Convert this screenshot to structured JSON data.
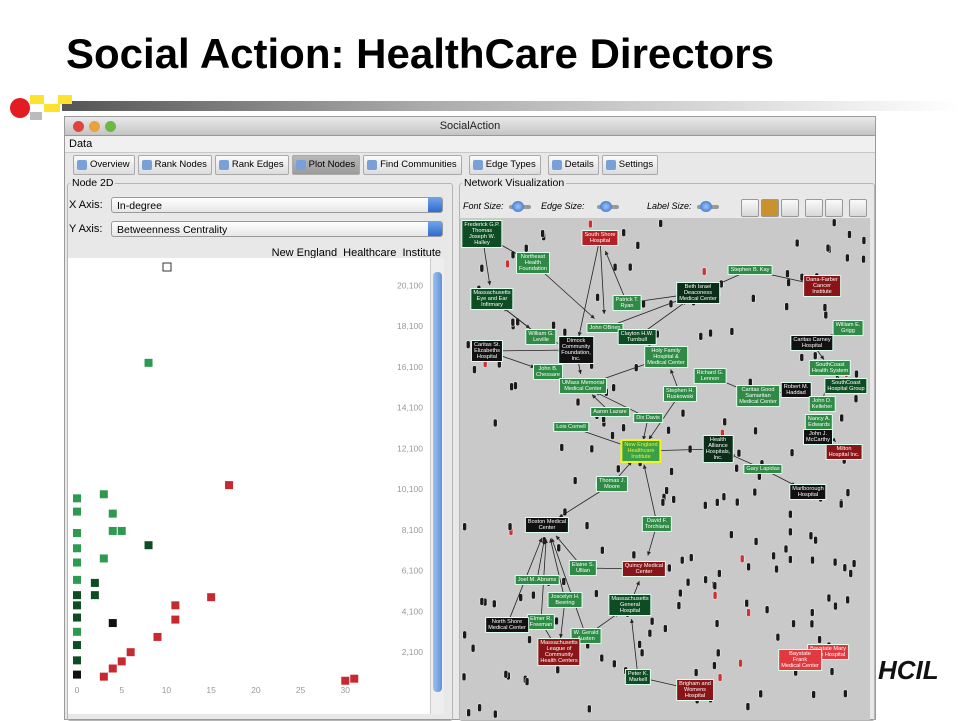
{
  "slide_title": "Social Action: HealthCare Directors",
  "window": {
    "title": "SocialAction",
    "menu": [
      "Data"
    ],
    "toolbar": [
      "Overview",
      "Rank Nodes",
      "Rank Edges",
      "Plot Nodes",
      "Find Communities",
      "Edge Types",
      "Details",
      "Settings"
    ]
  },
  "left_panel": {
    "title": "Node 2D",
    "x_axis_label": "X Axis:",
    "x_axis_value": "In-degree",
    "y_axis_label": "Y Axis:",
    "y_axis_value": "Betweenness Centrality",
    "selected_node": "New England  Healthcare  Institute",
    "plot": {
      "type": "scatter",
      "xlim": [
        0,
        35
      ],
      "ylim": [
        0,
        21100
      ],
      "xticks": [
        0,
        5,
        10,
        15,
        20,
        25,
        30
      ],
      "yticks": [
        {
          "value": 2100,
          "label": "2,100"
        },
        {
          "value": 4100,
          "label": "4,100"
        },
        {
          "value": 6100,
          "label": "6,100"
        },
        {
          "value": 8100,
          "label": "8,100"
        },
        {
          "value": 10100,
          "label": "10,100"
        },
        {
          "value": 12100,
          "label": "12,100"
        },
        {
          "value": 14100,
          "label": "14,100"
        },
        {
          "value": 16100,
          "label": "16,100"
        },
        {
          "value": 18100,
          "label": "18,100"
        },
        {
          "value": 20100,
          "label": "20,100"
        }
      ],
      "points": [
        {
          "x": 8,
          "y": 16300,
          "color": "#2e9a4f"
        },
        {
          "x": 17,
          "y": 10300,
          "color": "#c62a30"
        },
        {
          "x": 3,
          "y": 9850,
          "color": "#2e9a4f"
        },
        {
          "x": 4,
          "y": 8900,
          "color": "#2e9a4f"
        },
        {
          "x": 4,
          "y": 8050,
          "color": "#2e9a4f"
        },
        {
          "x": 5,
          "y": 8050,
          "color": "#2e9a4f"
        },
        {
          "x": 3,
          "y": 6700,
          "color": "#2e9a4f"
        },
        {
          "x": 8,
          "y": 7350,
          "color": "#0e4d24"
        },
        {
          "x": 2,
          "y": 5500,
          "color": "#0e4d24"
        },
        {
          "x": 2,
          "y": 4900,
          "color": "#0e4d24"
        },
        {
          "x": 4,
          "y": 3530,
          "color": "#111111"
        },
        {
          "x": 15,
          "y": 4800,
          "color": "#c62a30"
        },
        {
          "x": 11,
          "y": 4400,
          "color": "#c62a30"
        },
        {
          "x": 11,
          "y": 3700,
          "color": "#c62a30"
        },
        {
          "x": 9,
          "y": 2850,
          "color": "#c62a30"
        },
        {
          "x": 6,
          "y": 2100,
          "color": "#c62a30"
        },
        {
          "x": 5,
          "y": 1650,
          "color": "#c62a30"
        },
        {
          "x": 4,
          "y": 1300,
          "color": "#c62a30"
        },
        {
          "x": 3,
          "y": 900,
          "color": "#c62a30"
        },
        {
          "x": 30,
          "y": 700,
          "color": "#c62a30"
        },
        {
          "x": 31,
          "y": 800,
          "color": "#c62a30"
        },
        {
          "x": 0,
          "y": 9650,
          "color": "#2e9a4f"
        },
        {
          "x": 0,
          "y": 9000,
          "color": "#2e9a4f"
        },
        {
          "x": 0,
          "y": 7950,
          "color": "#2e9a4f"
        },
        {
          "x": 0,
          "y": 7200,
          "color": "#2e9a4f"
        },
        {
          "x": 0,
          "y": 6500,
          "color": "#2e9a4f"
        },
        {
          "x": 0,
          "y": 5650,
          "color": "#2e9a4f"
        },
        {
          "x": 0,
          "y": 4900,
          "color": "#0e4d24"
        },
        {
          "x": 0,
          "y": 4400,
          "color": "#0e4d24"
        },
        {
          "x": 0,
          "y": 3800,
          "color": "#0e4d24"
        },
        {
          "x": 0,
          "y": 3100,
          "color": "#2e9a4f"
        },
        {
          "x": 0,
          "y": 2450,
          "color": "#0e4d24"
        },
        {
          "x": 0,
          "y": 1700,
          "color": "#0e4d24"
        },
        {
          "x": 0,
          "y": 1000,
          "color": "#111111"
        }
      ]
    }
  },
  "right_panel": {
    "title": "Network Visualization",
    "controls": [
      "Font Size:",
      "Edge Size:",
      "Label Size:"
    ],
    "nodes": [
      {
        "label": "Frederick G.P.\nThomas\nJoseph W.\nHalley",
        "color": "#0e4d24"
      },
      {
        "label": "Northeast\nHealth\nFoundation",
        "color": "#2e8a45"
      },
      {
        "label": "South Shore\nHospital",
        "color": "#b52025"
      },
      {
        "label": "Stephen B. Kay",
        "color": "#2e8a45"
      },
      {
        "label": "Dana-Farber\nCancer\nInstitute",
        "color": "#8a1518"
      },
      {
        "label": "Massachusetts\nEye and Ear\nInfirmary",
        "color": "#0e4d24"
      },
      {
        "label": "Beth Israel\nDeaconess\nMedical Center",
        "color": "#0c2e18"
      },
      {
        "label": "Patrick T.\nRyan",
        "color": "#2e8a45"
      },
      {
        "label": "John OBrien",
        "color": "#2e8a45"
      },
      {
        "label": "Clayton H.W.\nTurnbull",
        "color": "#0e4d24"
      },
      {
        "label": "William G.\nLeville",
        "color": "#2e8a45"
      },
      {
        "label": "Dimock\nCommunity\nFoundation,\nInc.",
        "color": "#111111"
      },
      {
        "label": "Caritas St.\nElizabeths\nHospital",
        "color": "#111111"
      },
      {
        "label": "Holy Family\nHospital &\nMedical Center",
        "color": "#2e8a45"
      },
      {
        "label": "William E.\nGrigg",
        "color": "#2e8a45"
      },
      {
        "label": "Caritas Carney\nHospital",
        "color": "#111111"
      },
      {
        "label": "SouthCoast\nHealth System",
        "color": "#2e8a45"
      },
      {
        "label": "John B.\nChessare",
        "color": "#2e8a45"
      },
      {
        "label": "Richard G.\nLennon",
        "color": "#2e8a45"
      },
      {
        "label": "UMass Memorial\nMedical Center",
        "color": "#2e8a45"
      },
      {
        "label": "Caritas Good\nSamaritan\nMedical Center",
        "color": "#2e8a45"
      },
      {
        "label": "Robert M.\nHaddad",
        "color": "#111111"
      },
      {
        "label": "SouthCoast\nHospital Group",
        "color": "#0e4d24"
      },
      {
        "label": "Stephen H.\nRuskowski",
        "color": "#2e8a45"
      },
      {
        "label": "John D.\nKelleher",
        "color": "#2e8a45"
      },
      {
        "label": "Aaron Lazare",
        "color": "#2e8a45"
      },
      {
        "label": "Dix Davis",
        "color": "#2e8a45"
      },
      {
        "label": "Nancy A.\nEdwards",
        "color": "#2e8a45"
      },
      {
        "label": "Lois Cornell",
        "color": "#2e8a45"
      },
      {
        "label": "New England\nHealthcare\nInstitute",
        "color": "#3aa047",
        "border": "#f2f21e"
      },
      {
        "label": "Health\nAlliance\nHospitals,\nInc.",
        "color": "#0c2e18"
      },
      {
        "label": "John J.\nMcCarthy",
        "color": "#111111"
      },
      {
        "label": "Milton\nHospital Inc.",
        "color": "#8a1518"
      },
      {
        "label": "Gary Lapidas",
        "color": "#2e8a45"
      },
      {
        "label": "Thomas J.\nMoore",
        "color": "#2e8a45"
      },
      {
        "label": "Marlborough\nHospital",
        "color": "#111111"
      },
      {
        "label": "Boston Medical\nCenter",
        "color": "#111111"
      },
      {
        "label": "David F.\nTorchiana",
        "color": "#2e8a45"
      },
      {
        "label": "Elaine S.\nUllian",
        "color": "#2e8a45"
      },
      {
        "label": "Quincy Medical\nCenter",
        "color": "#8a1518"
      },
      {
        "label": "Joel M. Abrams",
        "color": "#2e8a45"
      },
      {
        "label": "Joscelyn H.\nBeering",
        "color": "#2e8a45"
      },
      {
        "label": "Massachusetts\nGeneral\nHospital",
        "color": "#0e4d24"
      },
      {
        "label": "Elmer R.\nFreeman",
        "color": "#2e8a45"
      },
      {
        "label": "North Shore\nMedical Center",
        "color": "#111111"
      },
      {
        "label": "W. Gerald\nAusten",
        "color": "#2e8a45"
      },
      {
        "label": "Massachusetts\nLeague of\nCommunity\nHealth Centers",
        "color": "#8a1518"
      },
      {
        "label": "Baystate Mary\nLane Hospital",
        "color": "#e03a40"
      },
      {
        "label": "Baystate\nFrank\nMedical Center",
        "color": "#e03a40"
      },
      {
        "label": "Peter K.\nMarkell",
        "color": "#0e4d24"
      },
      {
        "label": "Brigham and\nWomens\nHospital",
        "color": "#8a1518"
      }
    ]
  },
  "logo": "HCIL"
}
